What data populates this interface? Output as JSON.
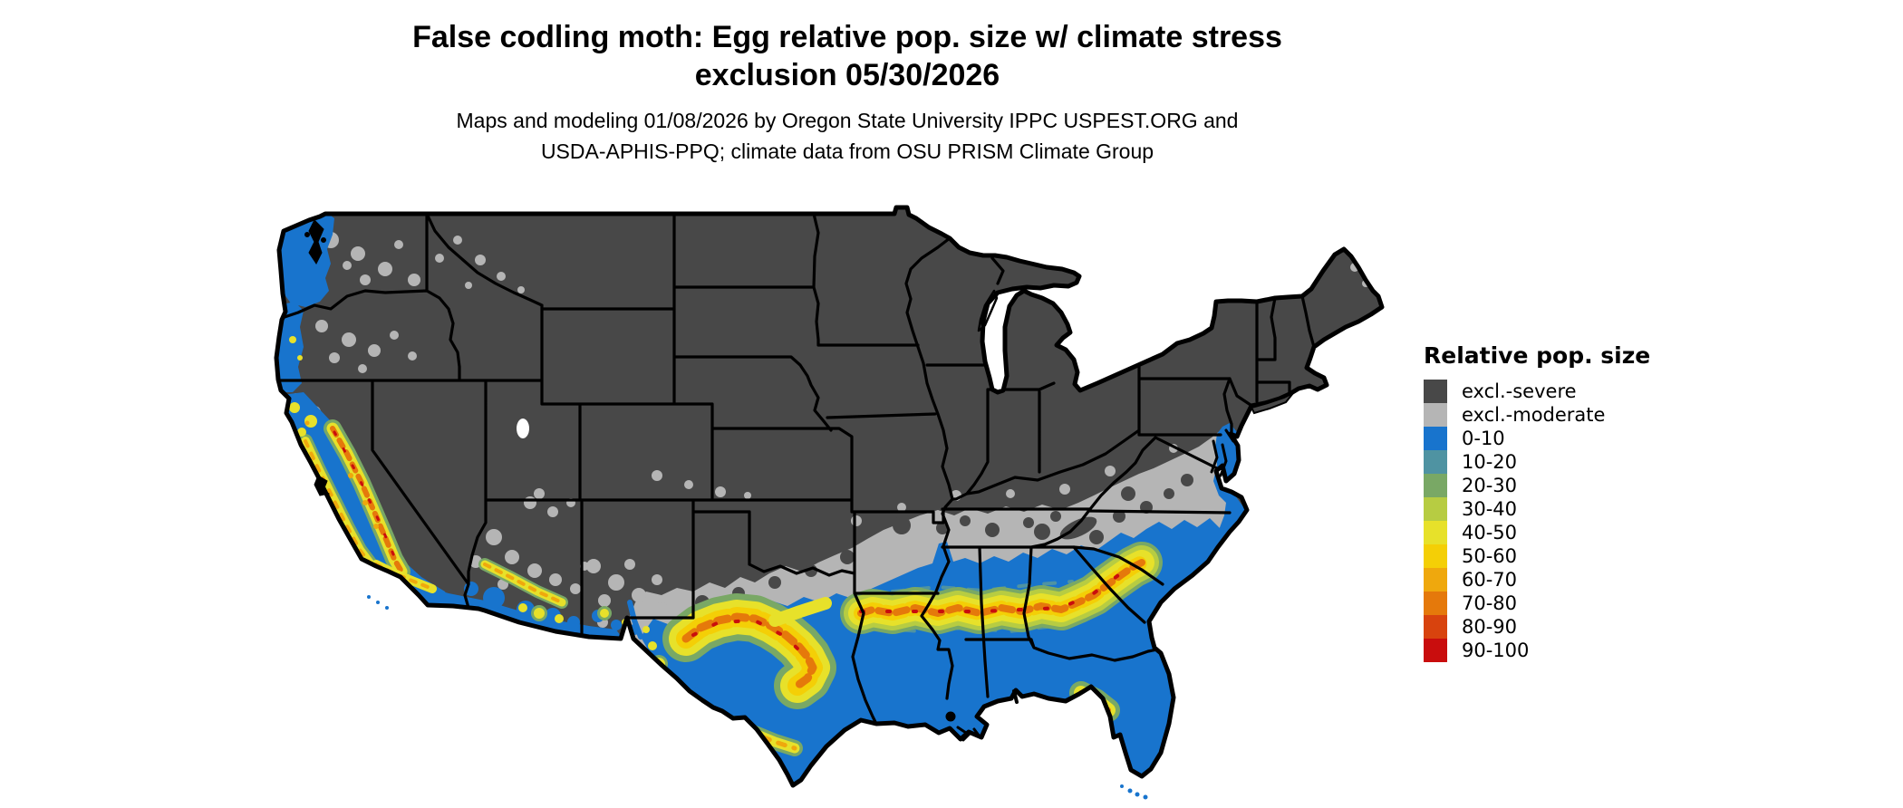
{
  "title": {
    "line1": "False codling moth: Egg relative pop. size w/ climate stress",
    "line2": "exclusion 05/30/2026"
  },
  "subtitle": {
    "line1": "Maps and modeling 01/08/2026 by Oregon State University IPPC USPEST.ORG and",
    "line2": "USDA-APHIS-PPQ; climate data from OSU PRISM Climate Group"
  },
  "legend": {
    "title": "Relative pop. size",
    "items": [
      {
        "key": "severe",
        "label": "excl.-severe",
        "color": "#484848"
      },
      {
        "key": "moderate",
        "label": "excl.-moderate",
        "color": "#b5b5b5"
      },
      {
        "key": "b0",
        "label": "0-10",
        "color": "#1874cd"
      },
      {
        "key": "b10",
        "label": "10-20",
        "color": "#4f93a2"
      },
      {
        "key": "b20",
        "label": "20-30",
        "color": "#79a865"
      },
      {
        "key": "b30",
        "label": "30-40",
        "color": "#b7cc42"
      },
      {
        "key": "b40",
        "label": "40-50",
        "color": "#e7e12a"
      },
      {
        "key": "b50",
        "label": "50-60",
        "color": "#f4cf06"
      },
      {
        "key": "b60",
        "label": "60-70",
        "color": "#efa80d"
      },
      {
        "key": "b70",
        "label": "70-80",
        "color": "#e5790b"
      },
      {
        "key": "b80",
        "label": "80-90",
        "color": "#d8430e"
      },
      {
        "key": "b90",
        "label": "90-100",
        "color": "#c90d0d"
      }
    ]
  },
  "map": {
    "region": "Conterminous United States",
    "ocean_color": "#ffffff",
    "border_color": "#000000"
  }
}
